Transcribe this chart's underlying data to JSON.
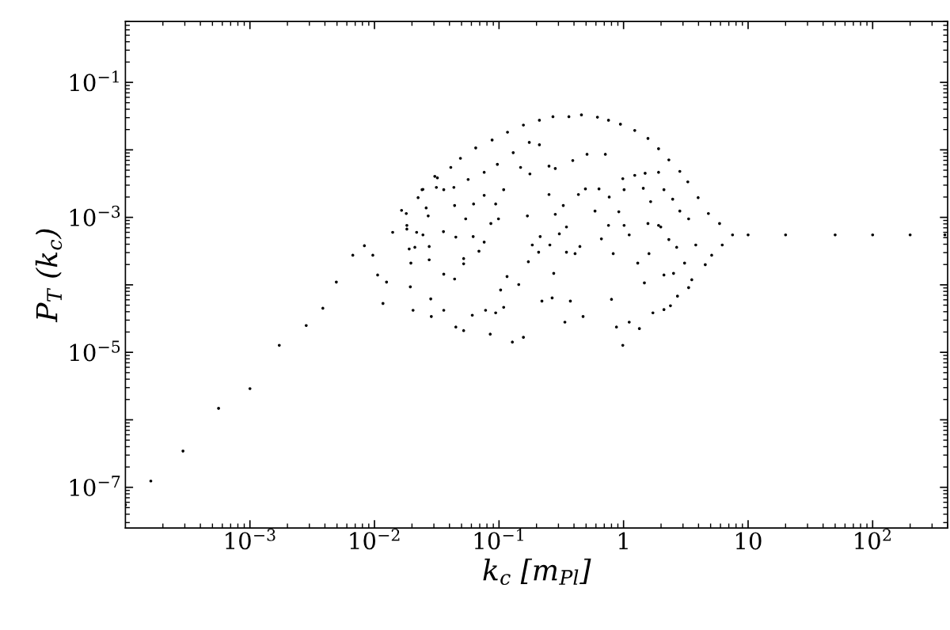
{
  "chart_data": {
    "type": "scatter",
    "xlabel": "k$_{c}$ [m$_{Pl}$]",
    "ylabel": "P$_{T}$ (k$_{c}$)",
    "log": "xy",
    "grid": false,
    "marker": "circle",
    "color": "#000000",
    "xlim": [
      0.0001,
      400
    ],
    "ylim": [
      2.5e-08,
      0.8
    ],
    "xticks": [
      {
        "value": 0.001,
        "label": "10$^{−3}$"
      },
      {
        "value": 0.01,
        "label": "10$^{−2}$"
      },
      {
        "value": 0.1,
        "label": "10$^{−1}$"
      },
      1,
      10,
      {
        "value": 100,
        "label": "10$^{2}$"
      }
    ],
    "yticks": [
      {
        "value": 1e-07,
        "label": "10$^{−7}$"
      },
      {
        "value": 1e-06,
        "label": null
      },
      {
        "value": 1e-05,
        "label": "10$^{−5}$"
      },
      {
        "value": 0.0001,
        "label": null
      },
      {
        "value": 0.001,
        "label": "10$^{−3}$"
      },
      {
        "value": 0.01,
        "label": null
      },
      {
        "value": 0.1,
        "label": "10$^{−1}$"
      }
    ],
    "x": [
      0.0001,
      0.00016,
      0.00029,
      0.00056,
      0.001,
      0.00172,
      0.00283,
      0.00385,
      0.00494,
      0.0067,
      0.0083,
      0.0097,
      0.0106,
      0.0117,
      0.0125,
      0.014,
      0.0165,
      0.0182,
      0.019,
      0.0204,
      0.0218,
      0.0245,
      0.027,
      0.0286,
      0.032,
      0.041,
      0.049,
      0.065,
      0.088,
      0.117,
      0.157,
      0.211,
      0.271,
      0.364,
      0.459,
      0.617,
      0.757,
      0.944,
      1.23,
      1.57,
      1.91,
      2.31,
      2.83,
      3.28,
      3.97,
      4.8,
      5.9,
      7.5,
      5.1,
      6.2,
      10,
      20,
      50,
      100,
      200,
      380,
      0.045,
      0.052,
      0.085,
      0.128,
      0.157,
      0.338,
      0.473,
      0.877,
      0.986,
      1.11,
      1.34,
      1.72,
      2.11,
      2.38,
      2.71,
      3.33,
      3.53,
      4.53,
      3.09,
      2.52,
      2.11,
      1.47,
      1.3,
      0.8,
      0.374,
      0.267,
      0.221,
      0.109,
      0.094,
      0.078,
      0.061,
      0.103,
      0.116,
      0.144,
      0.172,
      0.275,
      0.208,
      0.185,
      0.256,
      0.348,
      0.408,
      0.446,
      0.826,
      0.664,
      1.11,
      1.6,
      1.99,
      1.57,
      1.01,
      0.757,
      0.305,
      0.348,
      0.283,
      0.214,
      0.169,
      0.099,
      0.086,
      0.076,
      0.069,
      0.062,
      0.052,
      0.052,
      0.044,
      0.036,
      0.036,
      0.0283,
      0.0275,
      0.0275,
      0.0358,
      0.045,
      0.044,
      0.054,
      0.0625,
      0.076,
      0.094,
      0.109,
      0.149,
      0.177,
      0.252,
      0.328,
      0.434,
      0.494,
      0.59,
      0.635,
      0.767,
      0.916,
      1.01,
      1.23,
      1.49,
      1.91,
      2.11,
      2.48,
      2.83,
      3.33,
      3.8,
      2.67,
      2.31,
      1.91,
      1.65,
      1.44,
      0.986,
      0.714,
      0.509,
      0.391,
      0.283,
      0.252,
      0.211,
      0.175,
      0.13,
      0.097,
      0.076,
      0.0565,
      0.0434,
      0.036,
      0.0314,
      0.026,
      0.0245,
      0.0211,
      0.0196,
      0.0194,
      0.0182,
      0.018,
      0.0224,
      0.0241,
      0.0305
    ],
    "values": [
      5.5e-08,
      1.24e-07,
      3.45e-07,
      1.48e-06,
      2.9e-06,
      1.27e-05,
      2.5e-05,
      4.5e-05,
      0.00011,
      0.000275,
      0.00038,
      0.000275,
      0.00014,
      5.3e-05,
      0.00011,
      0.0006,
      0.00127,
      0.00076,
      0.00034,
      4.2e-05,
      0.0006,
      0.0026,
      0.00105,
      3.4e-05,
      0.00385,
      0.0055,
      0.0075,
      0.0107,
      0.014,
      0.0183,
      0.0233,
      0.0275,
      0.031,
      0.031,
      0.033,
      0.0305,
      0.0275,
      0.024,
      0.0194,
      0.0148,
      0.0104,
      0.0071,
      0.0048,
      0.00336,
      0.00196,
      0.00114,
      0.00081,
      0.00055,
      0.000275,
      0.00039,
      0.00055,
      0.00055,
      0.00055,
      0.00055,
      0.00055,
      0.00055,
      2.37e-05,
      2.1e-05,
      1.86e-05,
      1.42e-05,
      1.67e-05,
      2.8e-05,
      3.4e-05,
      2.37e-05,
      1.27e-05,
      2.8e-05,
      2.25e-05,
      3.85e-05,
      4.3e-05,
      4.9e-05,
      6.8e-05,
      9.1e-05,
      0.000119,
      0.000199,
      0.00021,
      0.000148,
      0.00014,
      0.000107,
      0.00021,
      6.1e-05,
      5.75e-05,
      6.4e-05,
      5.75e-05,
      4.65e-05,
      3.85e-05,
      4.2e-05,
      3.55e-05,
      8.4e-05,
      0.000133,
      0.000101,
      0.00022,
      0.000148,
      0.000305,
      0.00039,
      0.00039,
      0.000305,
      0.00029,
      0.00037,
      0.00029,
      0.00048,
      0.00055,
      0.00029,
      0.00072,
      0.00081,
      0.00076,
      0.00076,
      0.00057,
      0.00072,
      0.00111,
      0.00052,
      0.00105,
      0.00095,
      0.00081,
      0.00043,
      0.000315,
      0.00052,
      0.000245,
      0.000205,
      0.000122,
      0.000144,
      4.2e-05,
      6.2e-05,
      0.000235,
      0.00037,
      0.000615,
      0.00051,
      0.0015,
      0.00095,
      0.00158,
      0.00212,
      0.00158,
      0.00257,
      0.0055,
      0.0044,
      0.00218,
      0.0015,
      0.00218,
      0.00264,
      0.00124,
      0.00264,
      0.002,
      0.00121,
      0.00257,
      0.0042,
      0.0045,
      0.00465,
      0.00257,
      0.00186,
      0.00124,
      0.00095,
      0.00039,
      0.00036,
      0.00047,
      0.00076,
      0.00171,
      0.0027,
      0.00374,
      0.0086,
      0.0086,
      0.00695,
      0.0053,
      0.00575,
      0.0119,
      0.0129,
      0.0091,
      0.0061,
      0.00465,
      0.00364,
      0.00278,
      0.00257,
      0.00278,
      0.00138,
      0.00055,
      0.00036,
      0.00021,
      9.35e-05,
      0.00067,
      0.00114,
      0.00196,
      0.00257,
      0.00405
    ]
  }
}
